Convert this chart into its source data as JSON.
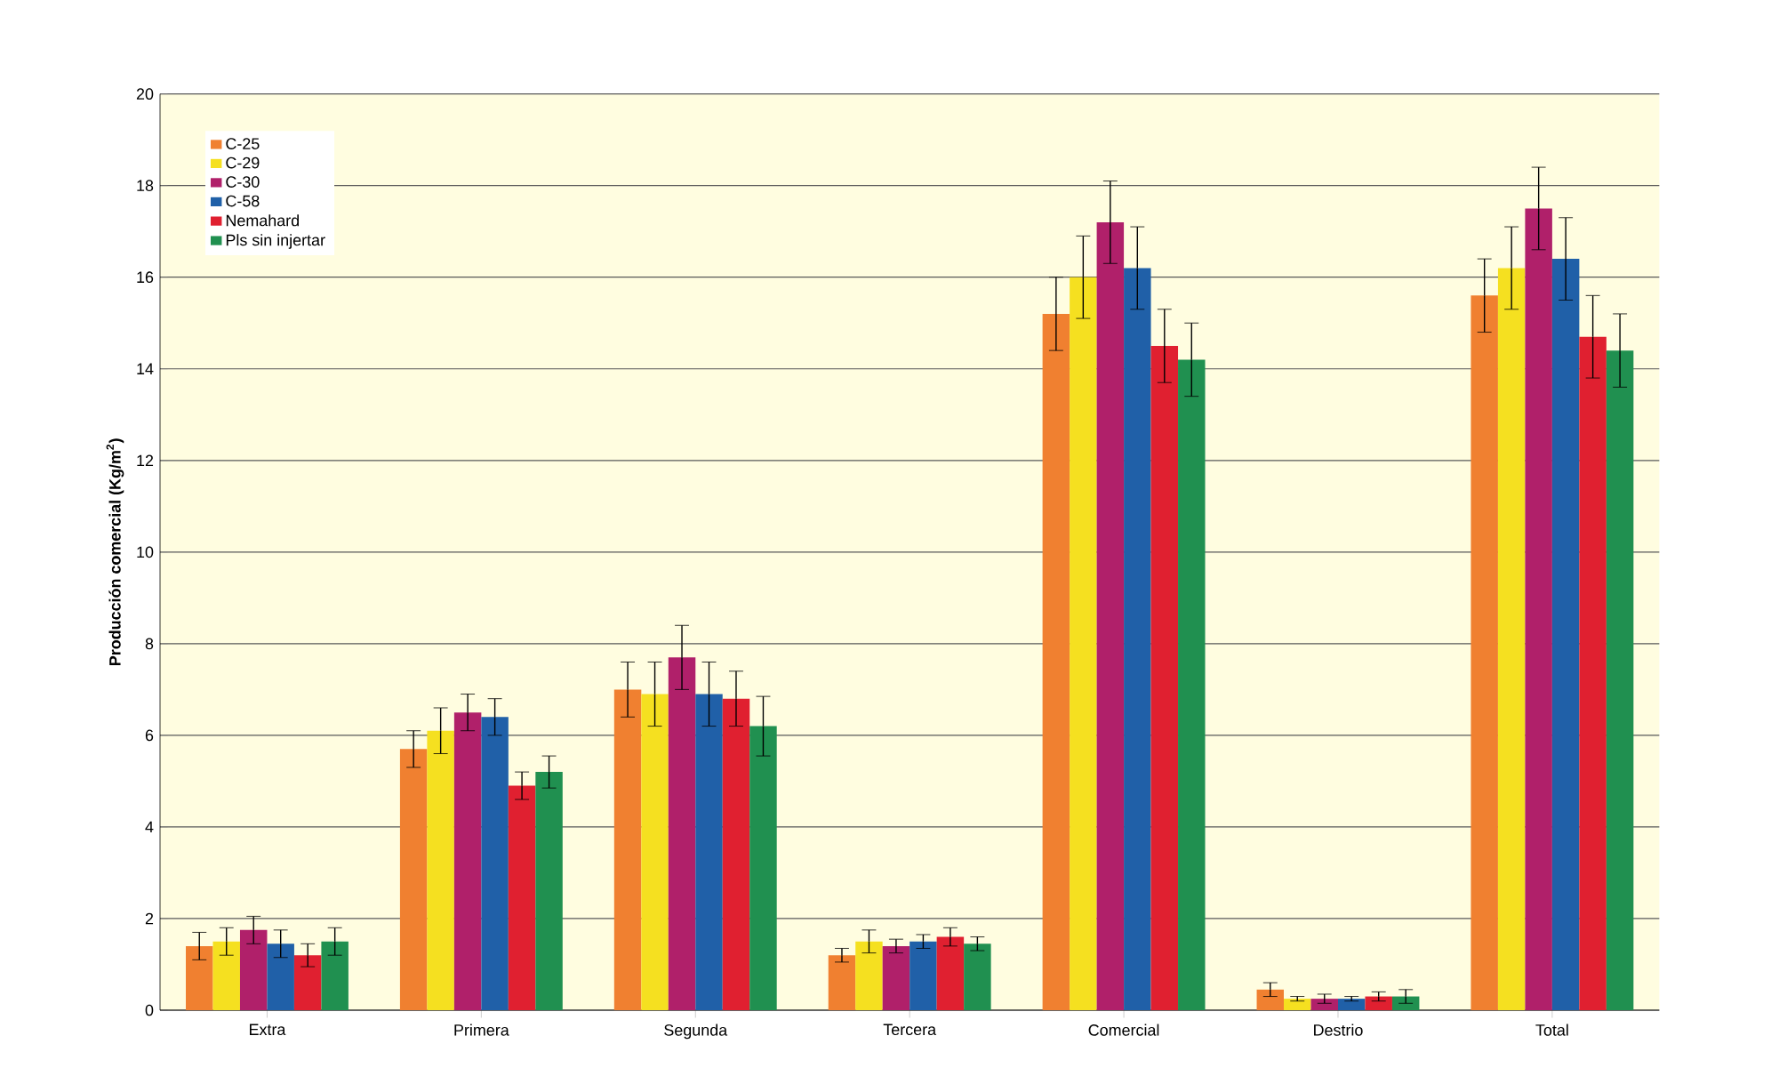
{
  "chart_data": {
    "type": "bar",
    "ylabel": "Producción comercial (Kg/m$^{2}$)",
    "categories": [
      "Extra",
      "Primera",
      "Segunda",
      "Tercera",
      "Comercial",
      "Destrio",
      "Total"
    ],
    "series": [
      {
        "name": "C-25",
        "color": "#f08030",
        "values": [
          1.4,
          5.7,
          7.0,
          1.2,
          15.2,
          0.45,
          15.6
        ],
        "errors": [
          0.3,
          0.4,
          0.6,
          0.15,
          0.8,
          0.15,
          0.8
        ]
      },
      {
        "name": "C-29",
        "color": "#f5e020",
        "values": [
          1.5,
          6.1,
          6.9,
          1.5,
          16.0,
          0.25,
          16.2
        ],
        "errors": [
          0.3,
          0.5,
          0.7,
          0.25,
          0.9,
          0.05,
          0.9
        ]
      },
      {
        "name": "C-30",
        "color": "#b0206a",
        "values": [
          1.75,
          6.5,
          7.7,
          1.4,
          17.2,
          0.25,
          17.5
        ],
        "errors": [
          0.3,
          0.4,
          0.7,
          0.15,
          0.9,
          0.1,
          0.9
        ]
      },
      {
        "name": "C-58",
        "color": "#2060a8",
        "values": [
          1.45,
          6.4,
          6.9,
          1.5,
          16.2,
          0.25,
          16.4
        ],
        "errors": [
          0.3,
          0.4,
          0.7,
          0.15,
          0.9,
          0.05,
          0.9
        ]
      },
      {
        "name": "Nemahard",
        "color": "#e02030",
        "values": [
          1.2,
          4.9,
          6.8,
          1.6,
          14.5,
          0.3,
          14.7
        ],
        "errors": [
          0.25,
          0.3,
          0.6,
          0.2,
          0.8,
          0.1,
          0.9
        ]
      },
      {
        "name": "Pls sin injertar",
        "color": "#209050",
        "values": [
          1.5,
          5.2,
          6.2,
          1.45,
          14.2,
          0.3,
          14.4
        ],
        "errors": [
          0.3,
          0.35,
          0.65,
          0.15,
          0.8,
          0.15,
          0.8
        ]
      }
    ],
    "ylim": [
      0,
      20
    ],
    "yticks": [
      0,
      2,
      4,
      6,
      8,
      10,
      12,
      14,
      16,
      18,
      20
    ],
    "grid": "y",
    "legend": "top left"
  }
}
